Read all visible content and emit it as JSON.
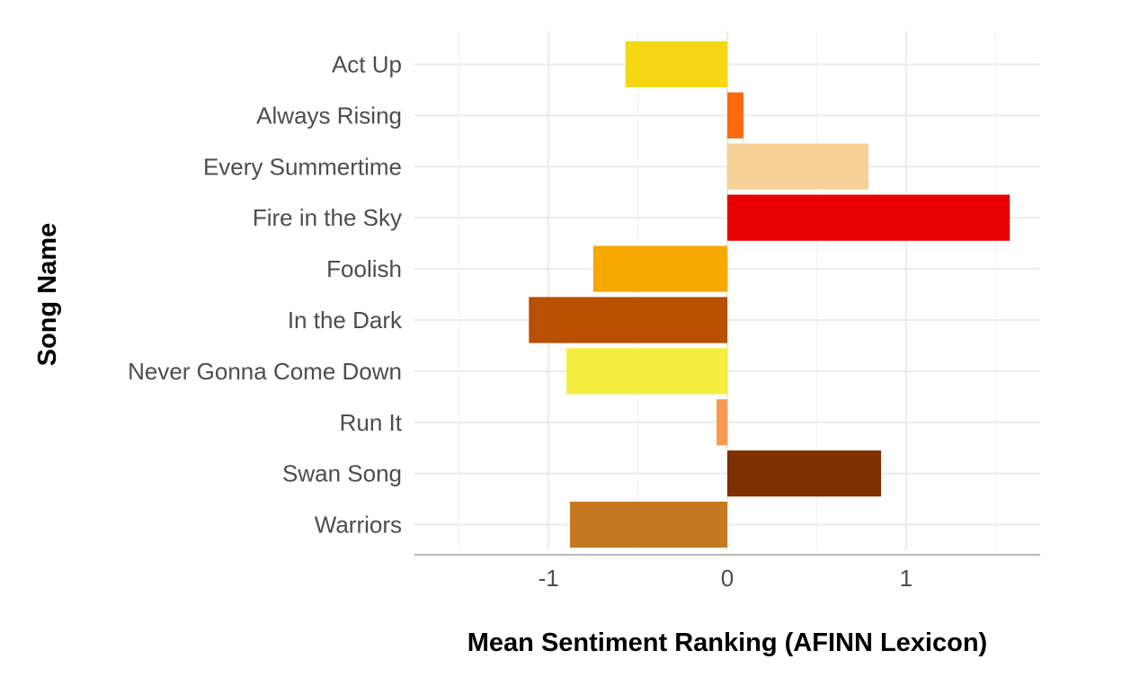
{
  "chart_data": {
    "type": "bar",
    "orientation": "horizontal",
    "xlabel": "Mean Sentiment Ranking (AFINN Lexicon)",
    "ylabel": "Song Name",
    "xlim": [
      -1.75,
      1.75
    ],
    "x_ticks": [
      -1,
      0,
      1
    ],
    "x_tick_labels": [
      "-1",
      "0",
      "1"
    ],
    "grid": true,
    "legend": "none",
    "categories": [
      "Act Up",
      "Always Rising",
      "Every Summertime",
      "Fire in the Sky",
      "Foolish",
      "In the Dark",
      "Never Gonna Come Down",
      "Run It",
      "Swan Song",
      "Warriors"
    ],
    "values": [
      -0.57,
      0.09,
      0.79,
      1.58,
      -0.75,
      -1.11,
      -0.9,
      -0.06,
      0.86,
      -0.88
    ],
    "colors": [
      "#f5d714",
      "#fb6a0e",
      "#f7d098",
      "#e80000",
      "#f5a800",
      "#b85000",
      "#f5ee40",
      "#f99852",
      "#7f3000",
      "#c47820"
    ]
  }
}
